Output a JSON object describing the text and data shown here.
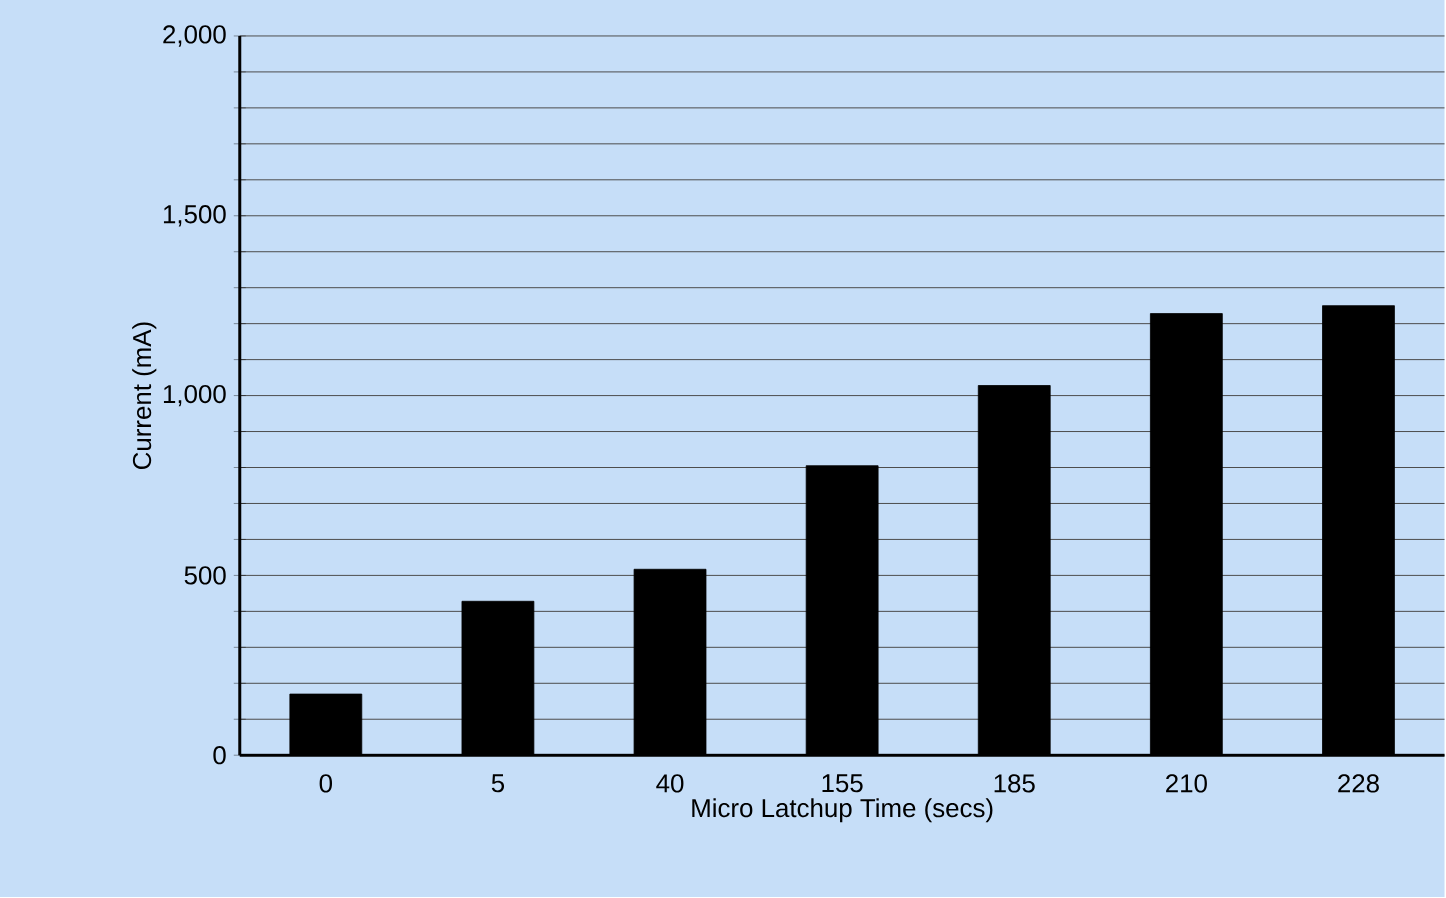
{
  "chart_data": {
    "type": "bar",
    "xlabel": "Micro Latchup Time (secs)",
    "ylabel": "Current (mA)",
    "categories": [
      "0",
      "5",
      "40",
      "155",
      "185",
      "210",
      "228"
    ],
    "values": [
      170,
      428,
      517,
      805,
      1028,
      1228,
      1250
    ],
    "color": "#000000",
    "ylim": [
      0,
      2000
    ],
    "yticks": [
      0,
      {
        "value": 100,
        "label": null
      },
      {
        "value": 200,
        "label": null
      },
      {
        "value": 300,
        "label": null
      },
      {
        "value": 400,
        "label": null
      },
      500,
      {
        "value": 600,
        "label": null
      },
      {
        "value": 700,
        "label": null
      },
      {
        "value": 800,
        "label": null
      },
      {
        "value": 900,
        "label": null
      },
      {
        "value": 1000,
        "label": "1,000"
      },
      {
        "value": 1100,
        "label": null
      },
      {
        "value": 1200,
        "label": null
      },
      {
        "value": 1300,
        "label": null
      },
      {
        "value": 1400,
        "label": null
      },
      {
        "value": 1500,
        "label": "1,500"
      },
      {
        "value": 1600,
        "label": null
      },
      {
        "value": 1700,
        "label": null
      },
      {
        "value": 1800,
        "label": null
      },
      {
        "value": 1900,
        "label": null
      },
      {
        "value": 2000,
        "label": "2,000"
      }
    ],
    "grid": "y"
  }
}
